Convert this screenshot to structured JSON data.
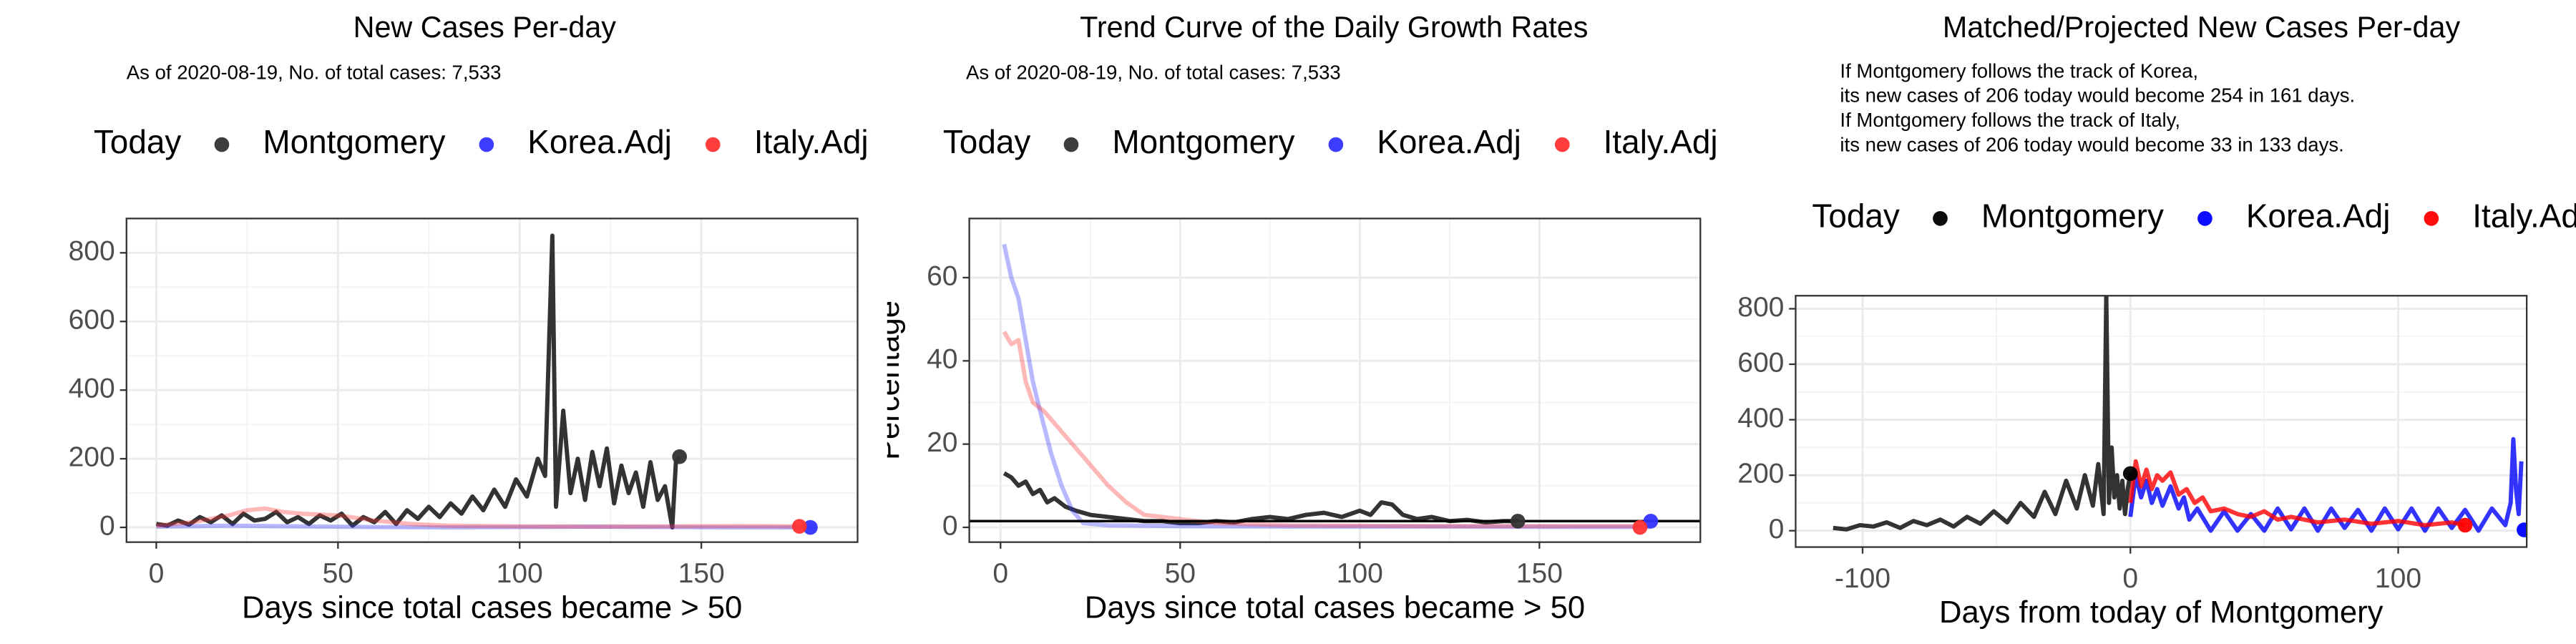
{
  "chart_data": [
    {
      "type": "line",
      "title": "New Cases Per-day",
      "subtitle": "As of 2020-08-19, No. of total cases: 7,533",
      "legend_title": "Today",
      "xlabel": "Days since total cases became > 50",
      "grid": true,
      "xlim": [
        -8.2,
        193
      ],
      "xticks": [
        0,
        50,
        100,
        150
      ],
      "ylim": [
        -43,
        900
      ],
      "yticks": [
        0,
        200,
        400,
        600,
        800
      ],
      "series": [
        {
          "name": "Montgomery",
          "color": "#333333",
          "line_alpha": 1,
          "today_x": 144,
          "today_value": 206,
          "x": [
            0,
            3,
            6,
            9,
            12,
            15,
            18,
            21,
            24,
            27,
            30,
            33,
            36,
            39,
            42,
            45,
            48,
            51,
            54,
            57,
            60,
            63,
            66,
            69,
            72,
            75,
            78,
            81,
            84,
            87,
            90,
            93,
            96,
            99,
            102,
            105,
            107,
            109,
            110,
            112,
            114,
            116,
            118,
            120,
            122,
            124,
            126,
            128,
            130,
            132,
            134,
            136,
            138,
            140,
            142,
            143,
            144
          ],
          "values": [
            10,
            5,
            20,
            8,
            30,
            15,
            35,
            10,
            40,
            20,
            25,
            45,
            15,
            30,
            10,
            35,
            20,
            40,
            5,
            30,
            15,
            45,
            10,
            50,
            25,
            60,
            30,
            70,
            40,
            90,
            50,
            110,
            60,
            140,
            90,
            200,
            150,
            850,
            60,
            340,
            100,
            200,
            80,
            220,
            120,
            230,
            70,
            180,
            100,
            160,
            60,
            190,
            80,
            120,
            0,
            190,
            206
          ]
        },
        {
          "name": "Korea.Adj",
          "color": "#3333ff",
          "line_alpha": 0.35,
          "today_x": 180,
          "today_value": 0,
          "x": [
            0,
            20,
            40,
            60,
            80,
            100,
            120,
            140,
            160,
            181
          ],
          "values": [
            2,
            5,
            3,
            1,
            0,
            1,
            2,
            1,
            0,
            0
          ]
        },
        {
          "name": "Italy.Adj",
          "color": "#ff3333",
          "line_alpha": 0.35,
          "today_x": 177,
          "today_value": 3,
          "x": [
            0,
            10,
            20,
            25,
            30,
            35,
            40,
            50,
            60,
            70,
            80,
            100,
            120,
            140,
            160,
            178
          ],
          "values": [
            5,
            15,
            35,
            50,
            55,
            45,
            40,
            35,
            20,
            10,
            5,
            3,
            2,
            3,
            4,
            3
          ]
        }
      ]
    },
    {
      "type": "line",
      "title": "Trend Curve of the Daily Growth Rates",
      "subtitle": "As of 2020-08-19, No. of total cases: 7,533",
      "legend_title": "Today",
      "xlabel": "Days since total cases became > 50",
      "ylabel": "Percentage",
      "grid": true,
      "xlim": [
        -8.7,
        194.8
      ],
      "xticks": [
        0,
        50,
        100,
        150
      ],
      "ylim": [
        -3.55,
        74.2
      ],
      "yticks": [
        0,
        20,
        40,
        60
      ],
      "hline": 1.5,
      "series": [
        {
          "name": "Montgomery",
          "color": "#333333",
          "line_alpha": 1,
          "today_x": 144,
          "today_value": 1.5,
          "x": [
            1,
            3,
            5,
            7,
            9,
            11,
            13,
            15,
            18,
            21,
            25,
            30,
            35,
            40,
            45,
            50,
            55,
            60,
            65,
            70,
            75,
            80,
            85,
            90,
            95,
            100,
            103,
            106,
            109,
            112,
            116,
            120,
            125,
            130,
            135,
            140,
            144
          ],
          "values": [
            13,
            12,
            10,
            11,
            8,
            9,
            6,
            7,
            5,
            4,
            3,
            2.5,
            2,
            1.5,
            1.5,
            1,
            1,
            1.5,
            1.2,
            2,
            2.5,
            2,
            3,
            3.5,
            2.5,
            4,
            3,
            6,
            5.5,
            3,
            2,
            2.5,
            1.5,
            1.8,
            1.2,
            1.5,
            1.5
          ]
        },
        {
          "name": "Korea.Adj",
          "color": "#3333ff",
          "line_alpha": 0.35,
          "today_x": 181,
          "today_value": 1.5,
          "x": [
            1,
            3,
            5,
            7,
            9,
            11,
            14,
            17,
            20,
            23,
            30,
            50,
            80,
            120,
            160,
            181
          ],
          "values": [
            68,
            60,
            55,
            45,
            35,
            28,
            18,
            10,
            4,
            1,
            0.5,
            0.3,
            0.2,
            0.2,
            0.1,
            0.1
          ]
        },
        {
          "name": "Italy.Adj",
          "color": "#ff3333",
          "line_alpha": 0.35,
          "today_x": 178,
          "today_value": 0,
          "x": [
            1,
            3,
            5,
            7,
            9,
            12,
            15,
            20,
            25,
            30,
            35,
            40,
            50,
            60,
            80,
            120,
            178
          ],
          "values": [
            47,
            44,
            45,
            35,
            30,
            28,
            25,
            20,
            15,
            10,
            6,
            3,
            2,
            1,
            0.5,
            0.3,
            0.3
          ]
        }
      ]
    },
    {
      "type": "line",
      "title": "Matched/Projected New Cases Per-day",
      "annotations": [
        "If Montgomery follows the track of Korea,",
        "its new cases of 206 today would become 254 in 161 days.",
        "If Montgomery follows the track of Italy,",
        "its new cases of 206 today would become 33 in 133 days."
      ],
      "legend_title": "Today",
      "xlabel": "Days from today of Montgomery",
      "grid": true,
      "xlim": [
        -125,
        148
      ],
      "xticks": [
        -100,
        0,
        100
      ],
      "ylim": [
        -59,
        847
      ],
      "yticks": [
        0,
        200,
        400,
        600,
        800
      ],
      "series": [
        {
          "name": "Montgomery",
          "color": "#000000",
          "line_alpha": 0.8,
          "today_x": 0,
          "today_value": 206,
          "x": [
            -111,
            -106,
            -101,
            -96,
            -91,
            -86,
            -81,
            -76,
            -71,
            -66,
            -61,
            -56,
            -51,
            -46,
            -41,
            -36,
            -32,
            -28,
            -24,
            -20,
            -17,
            -14,
            -12,
            -10,
            -9,
            -8,
            -7,
            -6,
            -5,
            -4,
            -3,
            -2,
            -1,
            0
          ],
          "values": [
            10,
            5,
            20,
            15,
            30,
            10,
            35,
            20,
            40,
            15,
            50,
            25,
            70,
            30,
            100,
            50,
            140,
            60,
            180,
            80,
            200,
            90,
            240,
            60,
            850,
            100,
            300,
            120,
            200,
            80,
            180,
            60,
            150,
            206
          ]
        },
        {
          "name": "Korea.Adj",
          "color": "#0000ff",
          "line_alpha": 0.8,
          "today_x": 147,
          "today_value": 3,
          "x": [
            0,
            2,
            4,
            6,
            8,
            10,
            12,
            15,
            18,
            20,
            22,
            25,
            30,
            35,
            40,
            45,
            50,
            55,
            60,
            65,
            70,
            75,
            80,
            85,
            90,
            95,
            100,
            105,
            110,
            115,
            120,
            125,
            130,
            135,
            140,
            142,
            143,
            144,
            145,
            146
          ],
          "values": [
            50,
            200,
            120,
            180,
            100,
            150,
            90,
            160,
            80,
            120,
            40,
            80,
            0,
            70,
            0,
            60,
            0,
            80,
            5,
            80,
            0,
            80,
            10,
            75,
            0,
            80,
            5,
            80,
            0,
            80,
            10,
            75,
            0,
            80,
            20,
            100,
            330,
            150,
            60,
            250
          ]
        },
        {
          "name": "Italy.Adj",
          "color": "#ff0000",
          "line_alpha": 0.8,
          "today_x": 125,
          "today_value": 20,
          "x": [
            0,
            2,
            4,
            6,
            8,
            10,
            12,
            15,
            18,
            21,
            24,
            27,
            30,
            35,
            40,
            45,
            50,
            55,
            60,
            70,
            80,
            90,
            100,
            110,
            120,
            125
          ],
          "values": [
            100,
            250,
            160,
            220,
            150,
            200,
            180,
            210,
            130,
            150,
            100,
            120,
            70,
            80,
            60,
            50,
            70,
            40,
            50,
            30,
            40,
            25,
            35,
            20,
            30,
            20
          ]
        }
      ]
    }
  ]
}
